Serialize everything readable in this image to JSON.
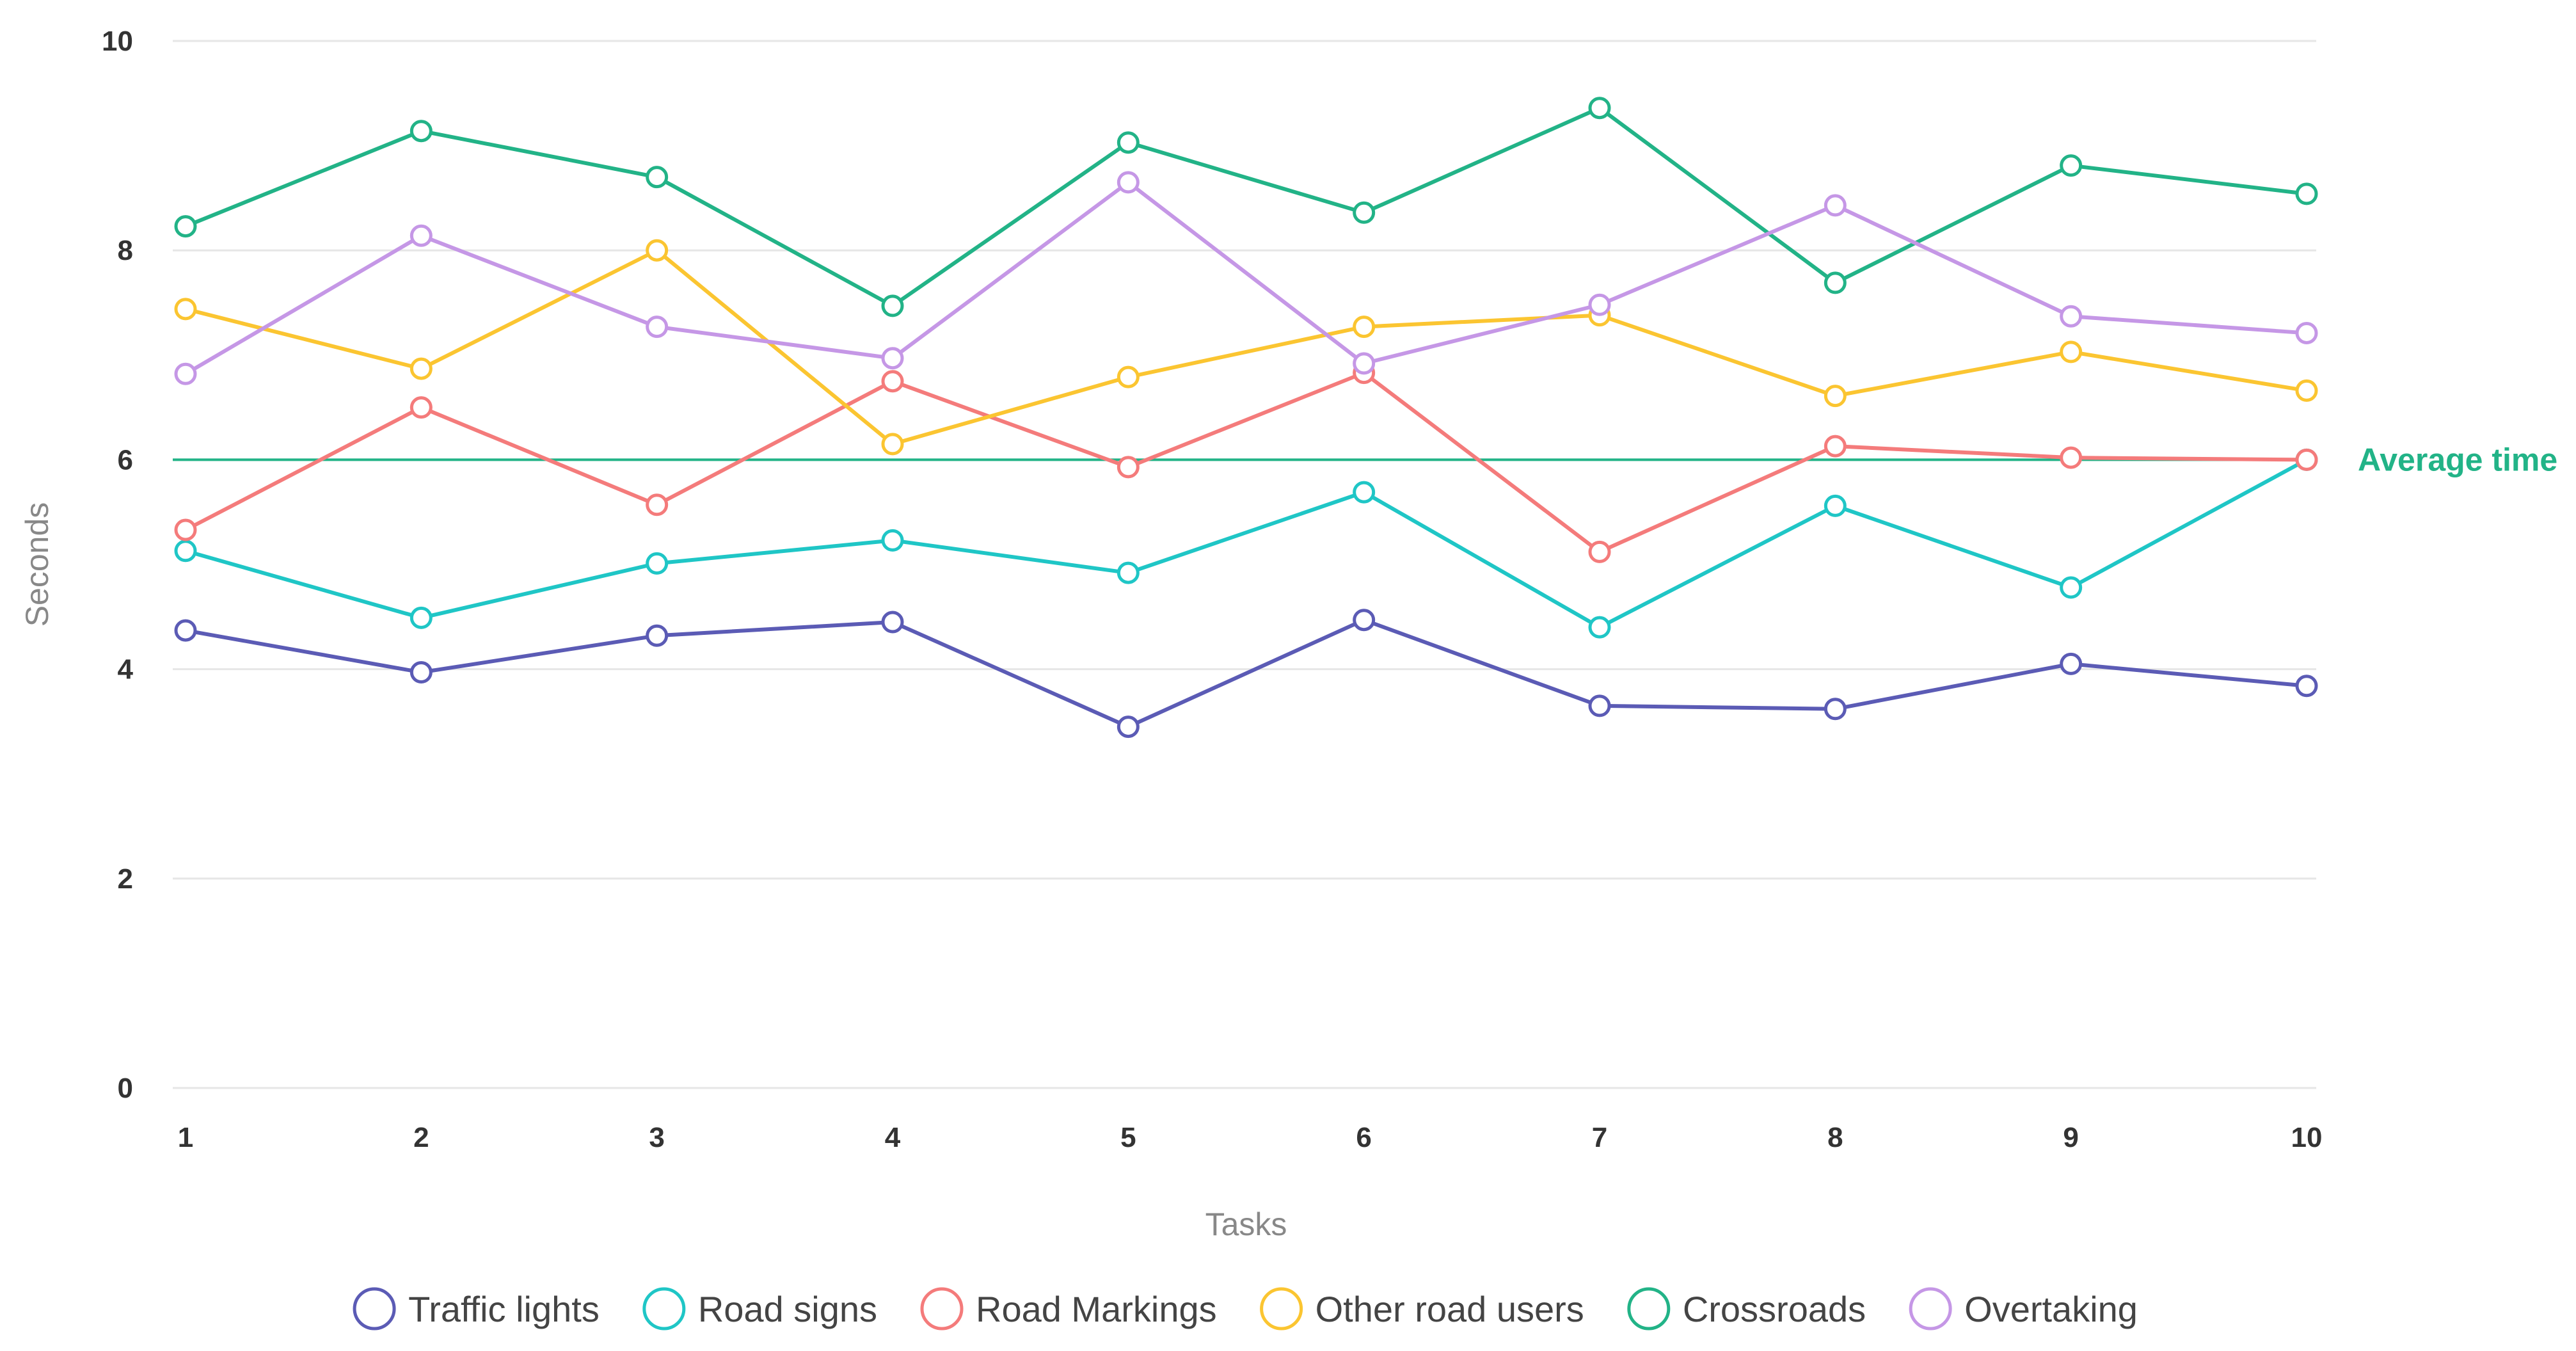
{
  "chart_data": {
    "type": "line",
    "x": [
      1,
      2,
      3,
      4,
      5,
      6,
      7,
      8,
      9,
      10
    ],
    "xlabel": "Tasks",
    "ylabel": "Seconds",
    "ylim": [
      0,
      10
    ],
    "yticks": [
      0,
      2,
      4,
      6,
      8,
      10
    ],
    "grid": true,
    "legend_placement": "bottom-center",
    "series": [
      {
        "name": "Traffic lights",
        "color": "#5b5bb5",
        "values": [
          4.37,
          3.97,
          4.32,
          4.45,
          3.45,
          4.47,
          3.65,
          3.62,
          4.05,
          3.84
        ]
      },
      {
        "name": "Road signs",
        "color": "#1fc6c6",
        "values": [
          5.13,
          4.49,
          5.01,
          5.23,
          4.92,
          5.69,
          4.4,
          5.56,
          4.78,
          6.0
        ]
      },
      {
        "name": "Road Markings",
        "color": "#f47b7b",
        "values": [
          5.33,
          6.5,
          5.57,
          6.75,
          5.93,
          6.83,
          5.12,
          6.13,
          6.02,
          6.0
        ]
      },
      {
        "name": "Other road users",
        "color": "#fbc531",
        "values": [
          7.44,
          6.87,
          8.0,
          6.15,
          6.79,
          7.27,
          7.38,
          6.61,
          7.03,
          6.66
        ]
      },
      {
        "name": "Crossroads",
        "color": "#22b387",
        "values": [
          8.23,
          9.14,
          8.7,
          7.47,
          9.03,
          8.36,
          9.36,
          7.69,
          8.81,
          8.54
        ]
      },
      {
        "name": "Overtaking",
        "color": "#c597e6",
        "values": [
          6.82,
          8.14,
          7.27,
          6.97,
          8.65,
          6.92,
          7.48,
          8.43,
          7.37,
          7.21
        ]
      }
    ],
    "reference_line": {
      "label": "Average time",
      "value": 6,
      "color": "#22b387"
    }
  }
}
